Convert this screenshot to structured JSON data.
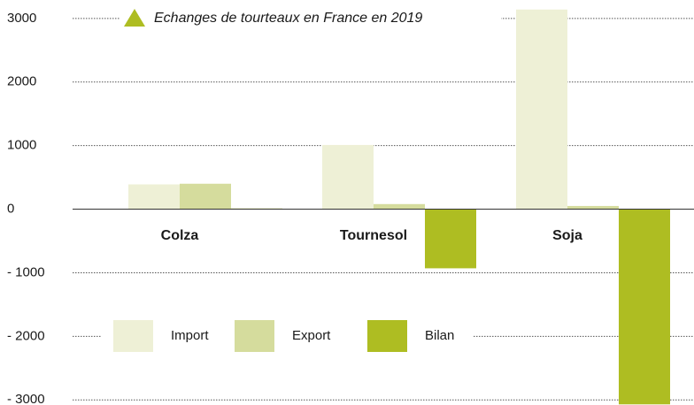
{
  "chart_data": {
    "type": "bar",
    "title": "Echanges de tourteaux en France  en 2019",
    "categories": [
      "Colza",
      "Tournesol",
      "Soja"
    ],
    "series": [
      {
        "name": "Import",
        "color": "#eef0d6",
        "values": [
          390,
          1010,
          3140
        ]
      },
      {
        "name": "Export",
        "color": "#d5dc9d",
        "values": [
          400,
          80,
          50
        ]
      },
      {
        "name": "Bilan",
        "color": "#aebd22",
        "values": [
          10,
          -930,
          -3070
        ]
      }
    ],
    "ylim": [
      -3080,
      3220
    ],
    "yticks": [
      {
        "value": -3000,
        "label": "- 3000"
      },
      {
        "value": -2000,
        "label": "- 2000"
      },
      {
        "value": -1000,
        "label": "- 1000"
      },
      0,
      1000,
      2000,
      3000
    ],
    "grid": true,
    "legend": "bottom"
  }
}
